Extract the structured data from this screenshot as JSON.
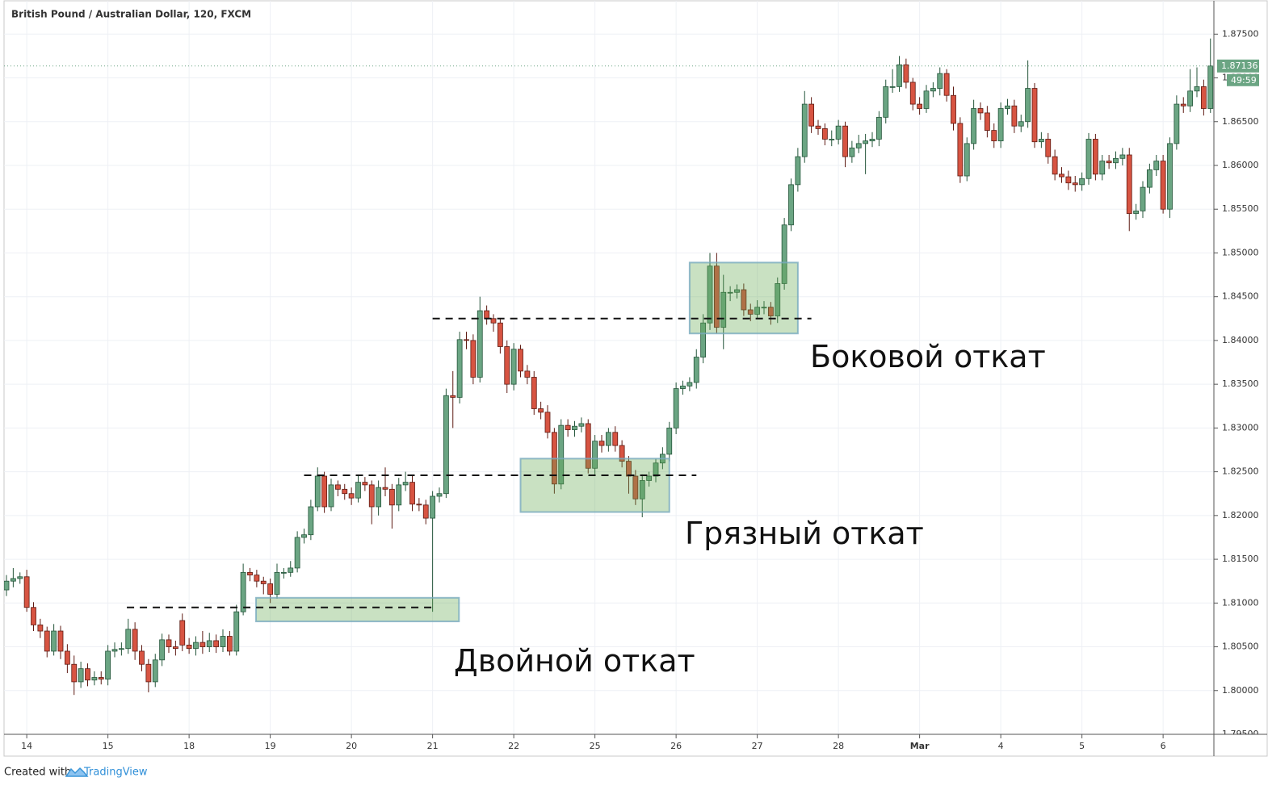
{
  "chart_data": {
    "type": "candlestick",
    "title": "British Pound / Australian Dollar, 120, FXCM",
    "countdown": "49:59",
    "footer": {
      "prefix": "Created with",
      "brand": "TradingView"
    },
    "up_color": "#6ba583",
    "down_color": "#d75442",
    "grid": true,
    "ylim": [
      1.795,
      1.8789
    ],
    "yticks": [
      {
        "value": 1.795,
        "label": "1.79500"
      },
      {
        "value": 1.8,
        "label": "1.80000"
      },
      {
        "value": 1.805,
        "label": "1.80500"
      },
      {
        "value": 1.81,
        "label": "1.81000"
      },
      {
        "value": 1.815,
        "label": "1.81500"
      },
      {
        "value": 1.82,
        "label": "1.82000"
      },
      {
        "value": 1.825,
        "label": "1.82500"
      },
      {
        "value": 1.83,
        "label": "1.83000"
      },
      {
        "value": 1.835,
        "label": "1.83500"
      },
      {
        "value": 1.84,
        "label": "1.84000"
      },
      {
        "value": 1.845,
        "label": "1.84500"
      },
      {
        "value": 1.85,
        "label": "1.85000"
      },
      {
        "value": 1.855,
        "label": "1.85500"
      },
      {
        "value": 1.86,
        "label": "1.86000"
      },
      {
        "value": 1.865,
        "label": "1.86500"
      },
      {
        "value": 1.87,
        "label": "1.87000"
      },
      {
        "value": 1.875,
        "label": "1.87500"
      }
    ],
    "categories": [
      null,
      null,
      null,
      "14",
      null,
      null,
      null,
      null,
      null,
      null,
      null,
      null,
      null,
      null,
      null,
      "15",
      null,
      null,
      null,
      null,
      null,
      null,
      null,
      null,
      null,
      null,
      null,
      "18",
      null,
      null,
      null,
      null,
      null,
      null,
      null,
      null,
      null,
      null,
      null,
      "19",
      null,
      null,
      null,
      null,
      null,
      null,
      null,
      null,
      null,
      null,
      null,
      "20",
      null,
      null,
      null,
      null,
      null,
      null,
      null,
      null,
      null,
      null,
      null,
      "21",
      null,
      null,
      null,
      null,
      null,
      null,
      null,
      null,
      null,
      null,
      null,
      "22",
      null,
      null,
      null,
      null,
      null,
      null,
      null,
      null,
      null,
      null,
      null,
      "25",
      null,
      null,
      null,
      null,
      null,
      null,
      null,
      null,
      null,
      null,
      null,
      "26",
      null,
      null,
      null,
      null,
      null,
      null,
      null,
      null,
      null,
      null,
      null,
      "27",
      null,
      null,
      null,
      null,
      null,
      null,
      null,
      null,
      null,
      null,
      null,
      "28",
      null,
      null,
      null,
      null,
      null,
      null,
      null,
      null,
      null,
      null,
      null,
      "Mar",
      null,
      null,
      null,
      null,
      null,
      null,
      null,
      null,
      null,
      null,
      null,
      "4",
      null,
      null,
      null,
      null,
      null,
      null,
      null,
      null,
      null,
      null,
      null,
      "5",
      null,
      null,
      null,
      null,
      null,
      null,
      null,
      null,
      null,
      null,
      null,
      "6",
      null,
      null,
      null,
      null,
      null,
      null,
      null
    ],
    "ohlc": {
      "open": [
        1.8115,
        1.8125,
        1.8128,
        1.813,
        1.8095,
        1.8075,
        1.8068,
        1.8045,
        1.8068,
        1.8045,
        1.803,
        1.801,
        1.8025,
        1.8012,
        1.8015,
        1.8013,
        1.8045,
        1.8047,
        1.8048,
        1.807,
        1.8045,
        1.803,
        1.801,
        1.8035,
        1.8058,
        1.805,
        1.808,
        1.8052,
        1.8048,
        1.8055,
        1.805,
        1.8057,
        1.805,
        1.8062,
        1.8045,
        1.809,
        1.8135,
        1.8132,
        1.8125,
        1.8122,
        1.811,
        1.8135,
        1.8135,
        1.814,
        1.8175,
        1.8178,
        1.821,
        1.8245,
        1.821,
        1.8235,
        1.823,
        1.8225,
        1.822,
        1.8238,
        1.8235,
        1.821,
        1.8232,
        1.823,
        1.8212,
        1.8235,
        1.8238,
        1.8213,
        1.8212,
        1.8197,
        1.8222,
        1.8225,
        1.8337,
        1.8335,
        1.8401,
        1.84,
        1.8358,
        1.8434,
        1.8425,
        1.842,
        1.8393,
        1.835,
        1.839,
        1.8365,
        1.8358,
        1.8322,
        1.8318,
        1.8295,
        1.8236,
        1.8303,
        1.8298,
        1.8302,
        1.8305,
        1.8254,
        1.8285,
        1.828,
        1.8295,
        1.828,
        1.8262,
        1.8245,
        1.8219,
        1.824,
        1.8245,
        1.826,
        1.827,
        1.83,
        1.8345,
        1.8348,
        1.8352,
        1.8381,
        1.842,
        1.8485,
        1.8415,
        1.8455,
        1.8455,
        1.8458,
        1.8435,
        1.843,
        1.8438,
        1.8438,
        1.8428,
        1.8465,
        1.8532,
        1.8578,
        1.861,
        1.867,
        1.8645,
        1.8642,
        1.863,
        1.863,
        1.8645,
        1.861,
        1.862,
        1.8625,
        1.8628,
        1.863,
        1.8655,
        1.869,
        1.869,
        1.8715,
        1.8695,
        1.867,
        1.8665,
        1.8685,
        1.8688,
        1.8705,
        1.868,
        1.8648,
        1.8588,
        1.8625,
        1.8665,
        1.866,
        1.864,
        1.8628,
        1.8665,
        1.8668,
        1.8645,
        1.865,
        1.8688,
        1.8627,
        1.863,
        1.861,
        1.859,
        1.8587,
        1.858,
        1.8578,
        1.8585,
        1.863,
        1.859,
        1.8605,
        1.8603,
        1.8608,
        1.8612,
        1.8545,
        1.8548,
        1.8575,
        1.8595,
        1.8605,
        1.855,
        1.8625,
        1.867,
        1.8668,
        1.8685,
        1.869,
        1.8665
      ],
      "high": [
        1.8132,
        1.814,
        1.8135,
        1.8138,
        1.8101,
        1.8082,
        1.8073,
        1.8076,
        1.8074,
        1.8053,
        1.804,
        1.8033,
        1.8031,
        1.8022,
        1.8022,
        1.8052,
        1.8055,
        1.8055,
        1.8082,
        1.8078,
        1.8052,
        1.8036,
        1.8042,
        1.8065,
        1.8064,
        1.8057,
        1.8088,
        1.806,
        1.8062,
        1.8068,
        1.8066,
        1.8064,
        1.807,
        1.8068,
        1.8098,
        1.8145,
        1.814,
        1.8138,
        1.813,
        1.8128,
        1.8145,
        1.814,
        1.8148,
        1.8182,
        1.8185,
        1.8218,
        1.8255,
        1.825,
        1.8242,
        1.824,
        1.8236,
        1.8232,
        1.8245,
        1.8244,
        1.824,
        1.824,
        1.8255,
        1.8236,
        1.8243,
        1.825,
        1.8245,
        1.822,
        1.8218,
        1.8228,
        1.8232,
        1.8345,
        1.8365,
        1.841,
        1.841,
        1.8407,
        1.845,
        1.844,
        1.843,
        1.8425,
        1.84,
        1.8397,
        1.8395,
        1.8372,
        1.8365,
        1.833,
        1.8326,
        1.83,
        1.831,
        1.831,
        1.8308,
        1.8312,
        1.831,
        1.8292,
        1.8292,
        1.83,
        1.8302,
        1.8286,
        1.8268,
        1.8252,
        1.8247,
        1.825,
        1.8265,
        1.8278,
        1.8307,
        1.8352,
        1.8354,
        1.8358,
        1.839,
        1.843,
        1.85,
        1.85,
        1.8475,
        1.8462,
        1.8464,
        1.8465,
        1.8442,
        1.8446,
        1.8445,
        1.8444,
        1.8472,
        1.854,
        1.8585,
        1.862,
        1.8685,
        1.8678,
        1.8652,
        1.8648,
        1.864,
        1.8652,
        1.865,
        1.8628,
        1.8635,
        1.8636,
        1.8638,
        1.8662,
        1.8698,
        1.871,
        1.8725,
        1.8722,
        1.87,
        1.8678,
        1.8692,
        1.8695,
        1.8712,
        1.871,
        1.869,
        1.8655,
        1.8632,
        1.8675,
        1.8672,
        1.8668,
        1.8648,
        1.8672,
        1.8676,
        1.8675,
        1.8658,
        1.872,
        1.8694,
        1.8638,
        1.8637,
        1.8618,
        1.8598,
        1.8594,
        1.8588,
        1.8592,
        1.8637,
        1.8636,
        1.8612,
        1.8612,
        1.8616,
        1.862,
        1.862,
        1.8556,
        1.8582,
        1.8602,
        1.8612,
        1.8612,
        1.8632,
        1.868,
        1.8678,
        1.871,
        1.8712,
        1.8698,
        1.8745
      ],
      "low": [
        1.8108,
        1.8118,
        1.8122,
        1.809,
        1.8068,
        1.806,
        1.8038,
        1.804,
        1.8036,
        1.802,
        1.7995,
        1.8003,
        1.8005,
        1.8006,
        1.8007,
        1.8006,
        1.8038,
        1.804,
        1.8042,
        1.8035,
        1.8022,
        1.7998,
        1.8004,
        1.8028,
        1.8043,
        1.804,
        1.8045,
        1.8042,
        1.804,
        1.8042,
        1.8044,
        1.8043,
        1.8044,
        1.804,
        1.804,
        1.8086,
        1.8125,
        1.8118,
        1.811,
        1.81,
        1.8105,
        1.8128,
        1.813,
        1.8135,
        1.8168,
        1.8172,
        1.8205,
        1.8203,
        1.8205,
        1.8222,
        1.8218,
        1.8212,
        1.8215,
        1.8228,
        1.819,
        1.82,
        1.8222,
        1.8185,
        1.8205,
        1.8228,
        1.8205,
        1.8205,
        1.819,
        1.809,
        1.8215,
        1.822,
        1.83,
        1.8328,
        1.839,
        1.835,
        1.8352,
        1.8418,
        1.841,
        1.8385,
        1.834,
        1.8343,
        1.8358,
        1.835,
        1.8315,
        1.831,
        1.8288,
        1.8225,
        1.823,
        1.829,
        1.829,
        1.8295,
        1.8248,
        1.8247,
        1.8272,
        1.8273,
        1.8273,
        1.8255,
        1.8225,
        1.8212,
        1.8198,
        1.8233,
        1.8238,
        1.8253,
        1.8262,
        1.8293,
        1.8338,
        1.8342,
        1.8345,
        1.8374,
        1.8412,
        1.8408,
        1.839,
        1.8445,
        1.8448,
        1.8428,
        1.8422,
        1.8425,
        1.843,
        1.8418,
        1.842,
        1.8458,
        1.8525,
        1.857,
        1.8603,
        1.8637,
        1.8635,
        1.8623,
        1.8622,
        1.8624,
        1.8598,
        1.8603,
        1.8614,
        1.859,
        1.8621,
        1.8622,
        1.8648,
        1.8683,
        1.8684,
        1.8688,
        1.8663,
        1.8658,
        1.866,
        1.8678,
        1.868,
        1.8673,
        1.864,
        1.858,
        1.8582,
        1.8618,
        1.8652,
        1.8632,
        1.862,
        1.862,
        1.8658,
        1.8637,
        1.8638,
        1.8643,
        1.862,
        1.862,
        1.8602,
        1.8583,
        1.858,
        1.8572,
        1.857,
        1.8571,
        1.8578,
        1.8583,
        1.8583,
        1.8596,
        1.8596,
        1.86,
        1.8525,
        1.8538,
        1.854,
        1.8568,
        1.8588,
        1.8545,
        1.854,
        1.8618,
        1.866,
        1.8661,
        1.8678,
        1.8657,
        1.866
      ],
      "close": [
        1.8125,
        1.8128,
        1.813,
        1.8095,
        1.8075,
        1.8068,
        1.8045,
        1.8068,
        1.8045,
        1.803,
        1.801,
        1.8025,
        1.8012,
        1.8015,
        1.8013,
        1.8045,
        1.8047,
        1.8048,
        1.807,
        1.8045,
        1.803,
        1.801,
        1.8035,
        1.8058,
        1.805,
        1.8048,
        1.8052,
        1.8048,
        1.8055,
        1.805,
        1.8057,
        1.805,
        1.8062,
        1.8045,
        1.809,
        1.8135,
        1.8132,
        1.8125,
        1.8122,
        1.811,
        1.8135,
        1.8135,
        1.814,
        1.8175,
        1.8178,
        1.821,
        1.8245,
        1.821,
        1.8235,
        1.823,
        1.8225,
        1.822,
        1.8238,
        1.8235,
        1.821,
        1.8232,
        1.823,
        1.8212,
        1.8235,
        1.8238,
        1.8213,
        1.8212,
        1.8197,
        1.8222,
        1.8225,
        1.8337,
        1.8335,
        1.8401,
        1.84,
        1.8358,
        1.8434,
        1.8425,
        1.842,
        1.8393,
        1.835,
        1.839,
        1.8365,
        1.8358,
        1.8322,
        1.8318,
        1.8295,
        1.8236,
        1.8303,
        1.8298,
        1.8302,
        1.8305,
        1.8254,
        1.8285,
        1.828,
        1.8295,
        1.828,
        1.8262,
        1.8245,
        1.8219,
        1.824,
        1.8245,
        1.826,
        1.827,
        1.83,
        1.8345,
        1.8348,
        1.8352,
        1.8381,
        1.842,
        1.8485,
        1.8415,
        1.8455,
        1.8455,
        1.8458,
        1.8435,
        1.843,
        1.8438,
        1.8438,
        1.8428,
        1.8465,
        1.8532,
        1.8578,
        1.861,
        1.867,
        1.8645,
        1.8642,
        1.863,
        1.863,
        1.8645,
        1.861,
        1.862,
        1.8625,
        1.8628,
        1.863,
        1.8655,
        1.869,
        1.869,
        1.8715,
        1.8695,
        1.867,
        1.8665,
        1.8685,
        1.8688,
        1.8705,
        1.868,
        1.8648,
        1.8588,
        1.8625,
        1.8665,
        1.866,
        1.864,
        1.8628,
        1.8665,
        1.8668,
        1.8645,
        1.865,
        1.8688,
        1.8627,
        1.863,
        1.861,
        1.859,
        1.8587,
        1.858,
        1.8578,
        1.8585,
        1.863,
        1.859,
        1.8605,
        1.8603,
        1.8608,
        1.8612,
        1.8545,
        1.8548,
        1.8575,
        1.8595,
        1.8605,
        1.855,
        1.8625,
        1.867,
        1.8668,
        1.8685,
        1.869,
        1.8665,
        1.87136
      ]
    },
    "levels": [
      {
        "value": 1.8095,
        "x": [
          17.8,
          63.5
        ]
      },
      {
        "value": 1.8246,
        "x": [
          44,
          102
        ]
      },
      {
        "value": 1.8425,
        "x": [
          63,
          119
        ]
      }
    ],
    "zones": [
      {
        "y": [
          1.8079,
          1.8106
        ],
        "x": [
          36.9,
          66.9
        ]
      },
      {
        "y": [
          1.8204,
          1.8265
        ],
        "x": [
          76,
          98
        ]
      },
      {
        "y": [
          1.8408,
          1.8489
        ],
        "x": [
          101,
          117
        ]
      }
    ],
    "annotations": [
      "Двойной откат",
      "Грязный откат",
      "Боковой откат"
    ]
  }
}
